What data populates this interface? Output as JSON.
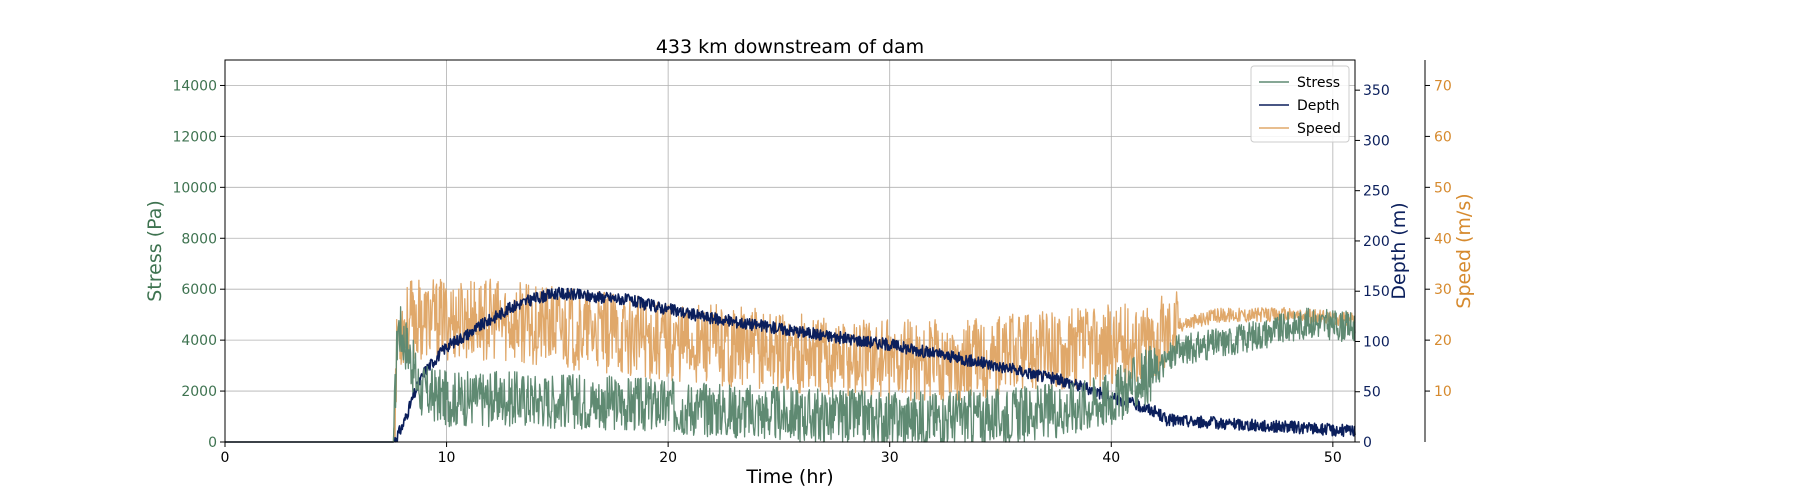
{
  "chart_data": {
    "type": "line",
    "title": "433 km downstream of dam",
    "xlabel": "Time (hr)",
    "xlim": [
      0,
      51
    ],
    "xticks": [
      0,
      10,
      20,
      30,
      40,
      50
    ],
    "grid": true,
    "legend_position": "top-right",
    "axes": {
      "stress": {
        "label": "Stress (Pa)",
        "color": "#3e7350",
        "side": "left",
        "ylim": [
          0,
          15000
        ],
        "ticks": [
          0,
          2000,
          4000,
          6000,
          8000,
          10000,
          12000,
          14000
        ]
      },
      "depth": {
        "label": "Depth (m)",
        "color": "#0b1f5c",
        "side": "right",
        "ylim": [
          0,
          380
        ],
        "ticks": [
          0,
          50,
          100,
          150,
          200,
          250,
          300,
          350
        ]
      },
      "speed": {
        "label": "Speed (m/s)",
        "color": "#d68a2e",
        "side": "right-outer",
        "ylim": [
          0,
          75
        ],
        "ticks": [
          10,
          20,
          30,
          40,
          50,
          60,
          70
        ]
      }
    },
    "series": [
      {
        "name": "Stress",
        "axis": "stress",
        "color": "#5f8a72",
        "noise": 1100,
        "x": [
          0,
          7.6,
          7.8,
          8.2,
          8.8,
          10,
          13,
          16,
          20,
          25,
          30,
          35,
          38,
          40,
          42,
          43,
          45,
          47,
          49,
          51
        ],
        "y": [
          0,
          0,
          4600,
          3800,
          2000,
          1700,
          1700,
          1600,
          1400,
          1100,
          900,
          1000,
          1300,
          1700,
          2800,
          3600,
          3900,
          4300,
          4700,
          4500
        ]
      },
      {
        "name": "Depth",
        "axis": "depth",
        "color": "#0b1f5c",
        "noise": 6,
        "x": [
          0,
          7.6,
          8,
          8.5,
          9,
          10,
          11,
          12,
          13,
          14,
          15,
          16,
          18,
          20,
          22,
          25,
          28,
          30,
          32,
          35,
          38,
          40,
          41,
          42,
          42.5,
          44,
          46,
          48,
          50,
          51
        ],
        "y": [
          0,
          0,
          15,
          45,
          70,
          95,
          108,
          122,
          135,
          143,
          148,
          146,
          142,
          132,
          123,
          113,
          103,
          97,
          88,
          75,
          60,
          45,
          38,
          30,
          22,
          20,
          17,
          15,
          12,
          11
        ]
      },
      {
        "name": "Speed",
        "axis": "speed",
        "color": "#e0a86a",
        "noise": 8,
        "x": [
          0,
          7.6,
          7.8,
          8.5,
          10,
          12,
          14,
          16,
          18,
          20,
          25,
          30,
          33,
          35,
          37,
          40,
          42,
          43,
          45,
          48,
          51
        ],
        "y": [
          0,
          0,
          22,
          24,
          24,
          24,
          23,
          22,
          21,
          20,
          18,
          16,
          16,
          17,
          18,
          19,
          20,
          23,
          25,
          25,
          24
        ]
      }
    ]
  }
}
